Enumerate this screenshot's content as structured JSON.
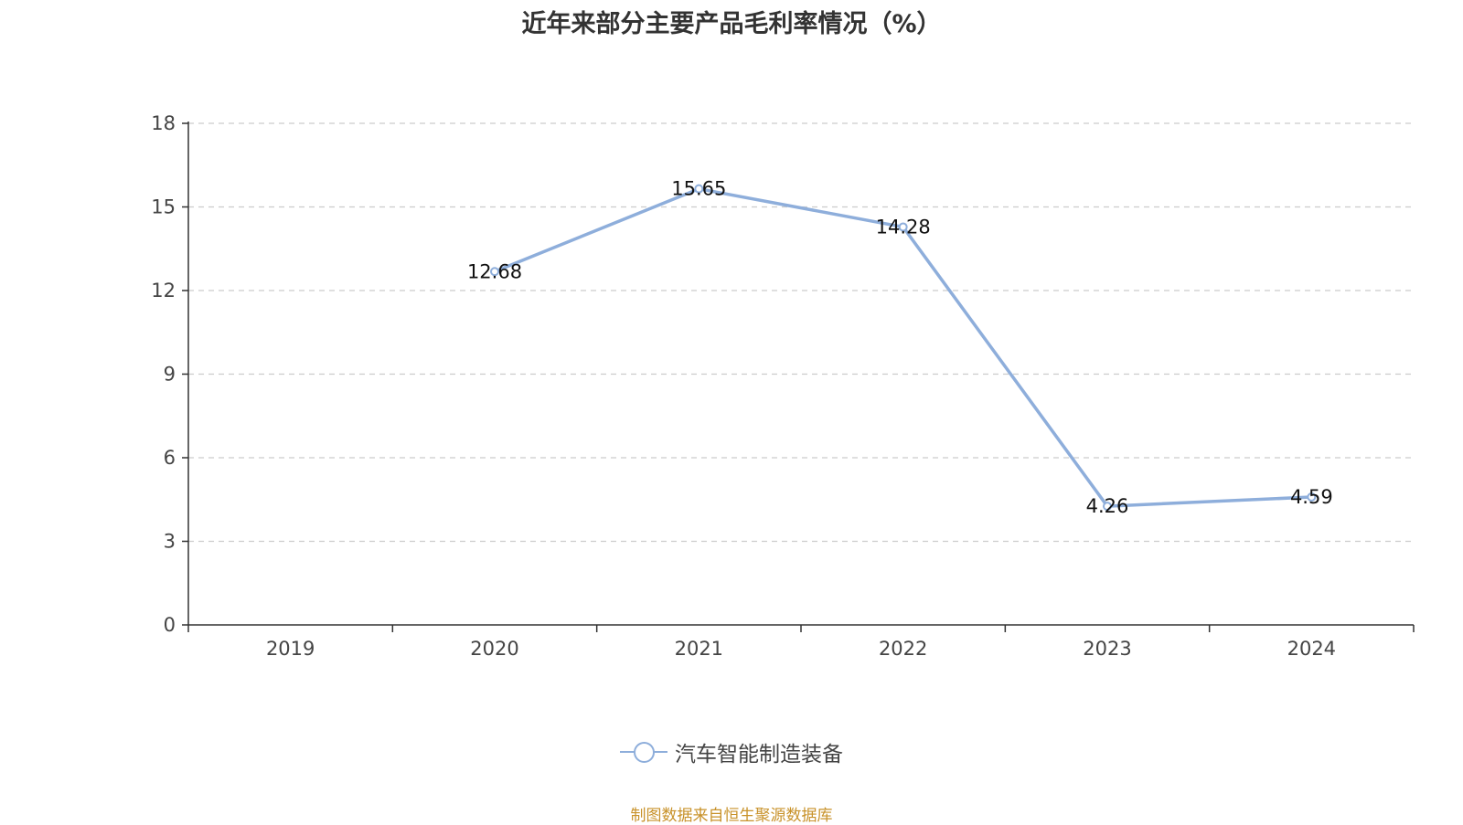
{
  "chart_data": {
    "type": "line",
    "title": "近年来部分主要产品毛利率情况（%）",
    "categories": [
      "2019",
      "2020",
      "2021",
      "2022",
      "2023",
      "2024"
    ],
    "series": [
      {
        "name": "汽车智能制造装备",
        "values": [
          null,
          12.68,
          15.65,
          14.28,
          4.26,
          4.59
        ],
        "labels": [
          "",
          "12.68",
          "15.65",
          "14.28",
          "4.26",
          "4.59"
        ]
      }
    ],
    "y_ticks": [
      "0",
      "3",
      "6",
      "9",
      "12",
      "15",
      "18"
    ],
    "ylim": [
      0,
      18
    ],
    "grid": "horizontal-dashed",
    "legend_position": "bottom",
    "line_color": "#8eaedb"
  },
  "source_note": "制图数据来自恒生聚源数据库"
}
